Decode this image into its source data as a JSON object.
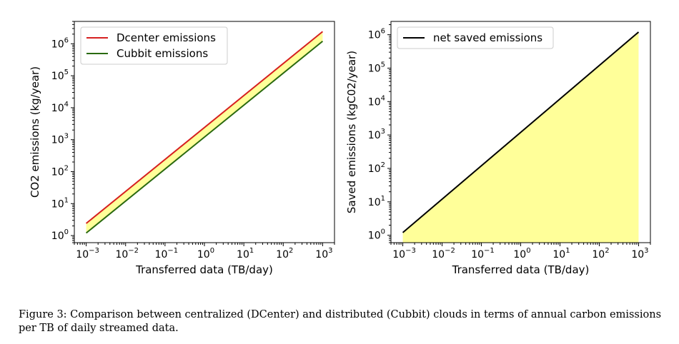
{
  "chart_data": [
    {
      "type": "line",
      "xscale": "log",
      "yscale": "log",
      "xlabel": "Transferred data (TB/day)",
      "ylabel": "CO2 emissions (kg/year)",
      "xlim": [
        0.0005,
        2000
      ],
      "ylim": [
        0.6,
        5000000
      ],
      "xticks": [
        0.001,
        0.01,
        0.1,
        1,
        10,
        100,
        1000
      ],
      "yticks": [
        1,
        10,
        100,
        1000,
        10000,
        100000,
        1000000
      ],
      "legend_location": "upper left",
      "fill_between_series": true,
      "fill_color": "#ffff99",
      "series": [
        {
          "name": "Dcenter emissions",
          "color": "#d62020",
          "x": [
            0.001,
            1000
          ],
          "y": [
            2.4,
            2400000
          ]
        },
        {
          "name": "Cubbit emissions",
          "color": "#2a6a10",
          "x": [
            0.001,
            1000
          ],
          "y": [
            1.2,
            1200000
          ]
        }
      ]
    },
    {
      "type": "area",
      "xscale": "log",
      "yscale": "log",
      "xlabel": "Transferred data (TB/day)",
      "ylabel": "Saved emissions (kgC02/year)",
      "xlim": [
        0.0005,
        2000
      ],
      "ylim": [
        0.6,
        2500000
      ],
      "xticks": [
        0.001,
        0.01,
        0.1,
        1,
        10,
        100,
        1000
      ],
      "yticks": [
        1,
        10,
        100,
        1000,
        10000,
        100000,
        1000000
      ],
      "legend_location": "upper left",
      "fill_color": "#ffff99",
      "series": [
        {
          "name": "net saved emissions",
          "color": "#000000",
          "x": [
            0.001,
            1000
          ],
          "y": [
            1.2,
            1200000
          ]
        }
      ]
    }
  ],
  "caption": "Figure 3: Comparison between centralized (DCenter) and distributed (Cubbit) clouds in terms of annual carbon emissions per TB of daily streamed data."
}
